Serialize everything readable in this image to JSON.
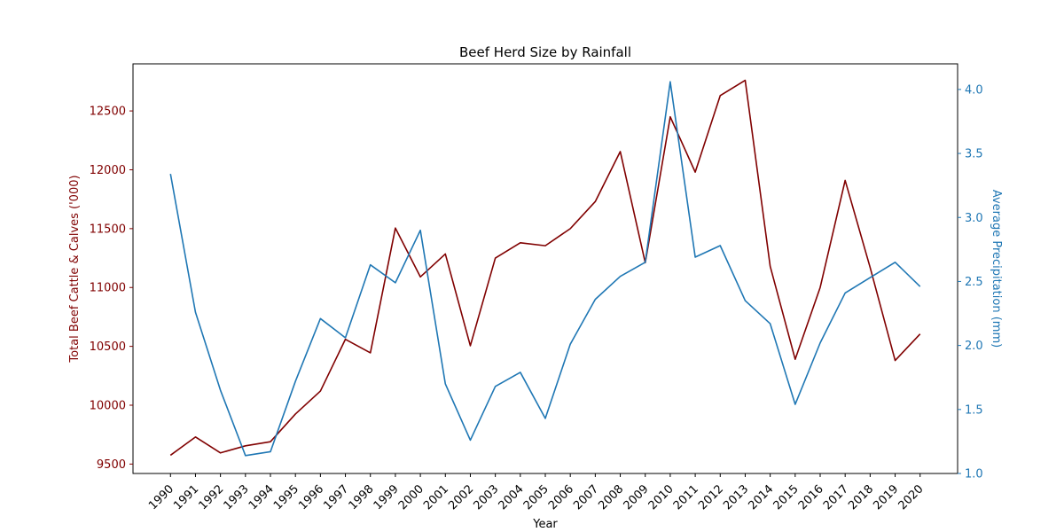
{
  "chart_data": {
    "type": "line",
    "title": "Beef Herd Size by Rainfall",
    "xlabel": "Year",
    "ylabel_left": "Total Beef Cattle & Calves ('000)",
    "ylabel_right": "Average Precipitation (mm)",
    "x": [
      1990,
      1991,
      1992,
      1993,
      1994,
      1995,
      1996,
      1997,
      1998,
      1999,
      2000,
      2001,
      2002,
      2003,
      2004,
      2005,
      2006,
      2007,
      2008,
      2009,
      2010,
      2011,
      2012,
      2013,
      2014,
      2015,
      2016,
      2017,
      2018,
      2019,
      2020
    ],
    "ylim_left": [
      9420,
      12900
    ],
    "ylim_right": [
      1.0,
      4.2
    ],
    "yticks_left": [
      9500,
      10000,
      10500,
      11000,
      11500,
      12000,
      12500
    ],
    "yticks_right": [
      1.0,
      1.5,
      2.0,
      2.5,
      3.0,
      3.5,
      4.0
    ],
    "grid": false,
    "series": [
      {
        "axis": "left",
        "color": "#800000",
        "values": [
          9575,
          9730,
          9595,
          9655,
          9690,
          9925,
          10120,
          10560,
          10445,
          11505,
          11090,
          11285,
          10505,
          11250,
          11380,
          11355,
          11500,
          11730,
          12155,
          11210,
          12450,
          11980,
          12630,
          12760,
          11180,
          10390,
          11000,
          11910,
          11170,
          10380,
          10605
        ]
      },
      {
        "axis": "right",
        "color": "#1f77b4",
        "values": [
          3.34,
          2.26,
          1.65,
          1.14,
          1.17,
          1.72,
          2.21,
          2.06,
          2.63,
          2.49,
          2.9,
          1.7,
          1.26,
          1.68,
          1.79,
          1.43,
          2.01,
          2.36,
          2.54,
          2.65,
          4.06,
          2.69,
          2.78,
          2.35,
          2.17,
          1.54,
          2.02,
          2.41,
          2.53,
          2.65,
          2.46
        ]
      }
    ]
  }
}
